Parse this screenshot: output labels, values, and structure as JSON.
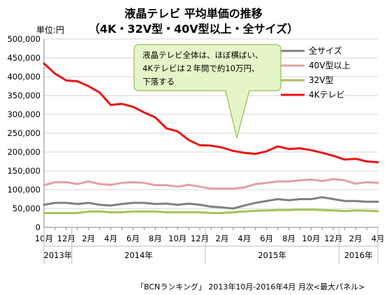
{
  "chart_data": {
    "type": "line",
    "title": "液晶テレビ 平均単価の推移",
    "subtitle": "（4K・32V型・40V型以上・全サイズ）",
    "ylabel": "単位:円",
    "ylim": [
      0,
      500000
    ],
    "yticks": [
      0,
      50000,
      100000,
      150000,
      200000,
      250000,
      300000,
      350000,
      400000,
      450000,
      500000
    ],
    "ytick_labels": [
      "0",
      "50,000",
      "100,000",
      "150,000",
      "200,000",
      "250,000",
      "300,000",
      "350,000",
      "400,000",
      "450,000",
      "500,000"
    ],
    "grid": true,
    "legend_position": "top-right",
    "x": [
      "2013-10",
      "2013-11",
      "2013-12",
      "2014-01",
      "2014-02",
      "2014-03",
      "2014-04",
      "2014-05",
      "2014-06",
      "2014-07",
      "2014-08",
      "2014-09",
      "2014-10",
      "2014-11",
      "2014-12",
      "2015-01",
      "2015-02",
      "2015-03",
      "2015-04",
      "2015-05",
      "2015-06",
      "2015-07",
      "2015-08",
      "2015-09",
      "2015-10",
      "2015-11",
      "2015-12",
      "2016-01",
      "2016-02",
      "2016-03",
      "2016-04"
    ],
    "xtick_labels": [
      "10月",
      "",
      "12月",
      "",
      "2月",
      "",
      "4月",
      "",
      "6月",
      "",
      "8月",
      "",
      "10月",
      "",
      "12月",
      "",
      "2月",
      "",
      "4月",
      "",
      "6月",
      "",
      "8月",
      "",
      "10月",
      "",
      "12月",
      "",
      "2月",
      "",
      "4月"
    ],
    "year_labels": [
      {
        "label": "2013年",
        "start": 0,
        "end": 2
      },
      {
        "label": "2014年",
        "start": 3,
        "end": 14
      },
      {
        "label": "2015年",
        "start": 15,
        "end": 26
      },
      {
        "label": "2016年",
        "start": 27,
        "end": 30
      }
    ],
    "series": [
      {
        "name": "全サイズ",
        "color": "#808080",
        "values": [
          60000,
          65000,
          65000,
          62000,
          65000,
          60000,
          58000,
          62000,
          65000,
          65000,
          62000,
          63000,
          60000,
          63000,
          60000,
          55000,
          53000,
          50000,
          58000,
          65000,
          70000,
          75000,
          72000,
          75000,
          75000,
          80000,
          75000,
          70000,
          70000,
          68000,
          68000
        ]
      },
      {
        "name": "40V型以上",
        "color": "#e6a0a0",
        "values": [
          112000,
          120000,
          120000,
          115000,
          122000,
          115000,
          113000,
          118000,
          120000,
          118000,
          112000,
          112000,
          108000,
          113000,
          108000,
          103000,
          103000,
          103000,
          106000,
          115000,
          118000,
          122000,
          122000,
          125000,
          127000,
          123000,
          128000,
          125000,
          116000,
          120000,
          118000
        ]
      },
      {
        "name": "32V型",
        "color": "#a6c25a",
        "values": [
          38000,
          38000,
          38000,
          38000,
          42000,
          42000,
          40000,
          40000,
          42000,
          42000,
          42000,
          40000,
          40000,
          40000,
          40000,
          38000,
          38000,
          40000,
          42000,
          44000,
          45000,
          46000,
          46000,
          47000,
          47000,
          46000,
          45000,
          43000,
          45000,
          44000,
          43000
        ]
      },
      {
        "name": "4Kテレビ",
        "color": "#ee1111",
        "values": [
          435000,
          408000,
          390000,
          388000,
          375000,
          358000,
          325000,
          328000,
          320000,
          305000,
          292000,
          263000,
          255000,
          232000,
          218000,
          217000,
          212000,
          203000,
          198000,
          195000,
          202000,
          215000,
          208000,
          210000,
          205000,
          198000,
          190000,
          180000,
          182000,
          175000,
          173000
        ]
      }
    ],
    "annotation": {
      "lines": [
        "液晶テレビ全体は、ほぼ横ばい、",
        "4Kテレビは２年間で約10万円、",
        "下落する"
      ],
      "fill": "#e6f5c8",
      "stroke": "#8fbf4f"
    }
  },
  "source": "「BCNランキング」 2013年10月-2016年4月 月次<最大パネル>"
}
